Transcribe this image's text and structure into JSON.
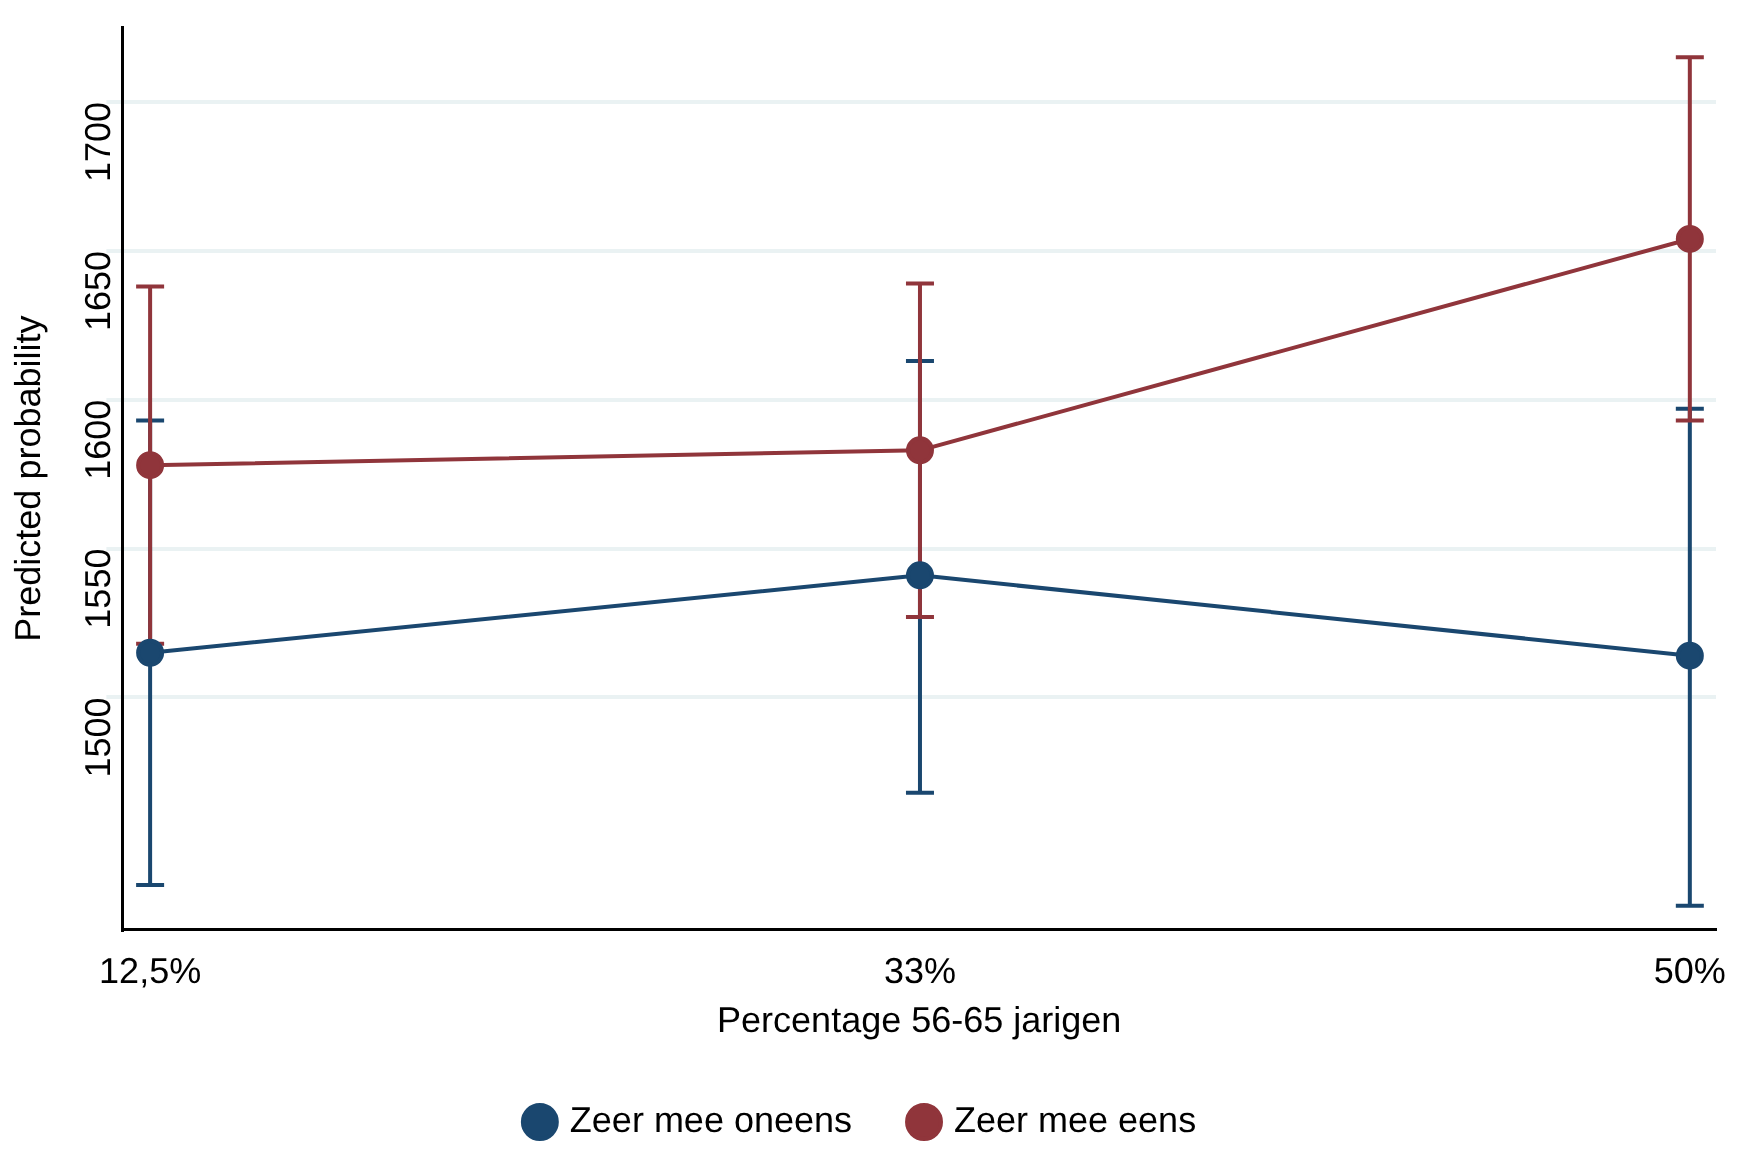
{
  "chart_data": {
    "type": "line",
    "xlabel": "Percentage 56-65 jarigen",
    "ylabel": "Predicted probability",
    "categories": [
      "12,5%",
      "33%",
      "50%"
    ],
    "series": [
      {
        "name": "Zeer mee oneens",
        "color": "#1a476f",
        "values": [
          1515,
          1541,
          1514
        ],
        "errors": [
          [
            1437,
            1593
          ],
          [
            1468,
            1613
          ],
          [
            1430,
            1597
          ]
        ]
      },
      {
        "name": "Zeer mee eens",
        "color": "#90353b",
        "values": [
          1578,
          1583,
          1654
        ],
        "errors": [
          [
            1518,
            1638
          ],
          [
            1527,
            1639
          ],
          [
            1593,
            1715
          ]
        ]
      }
    ],
    "ylim": [
      1422,
      1725
    ],
    "yticks": [
      1500,
      1550,
      1600,
      1650,
      1700
    ],
    "grid": "y",
    "legend": "bottom",
    "marker": "circle",
    "line_style": "solid"
  }
}
